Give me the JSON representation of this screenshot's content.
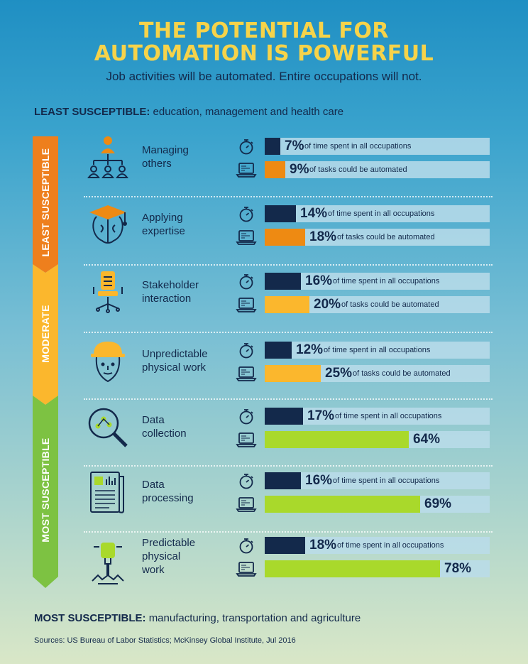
{
  "title": {
    "line1": "THE POTENTIAL FOR",
    "line2": "AUTOMATION IS POWERFUL"
  },
  "subtitle": "Job activities will be automated. Entire occupations will not.",
  "least_heading": {
    "bold": "LEAST SUSCEPTIBLE:",
    "rest": "education, management and health care"
  },
  "most_heading": {
    "bold": "MOST SUSCEPTIBLE:",
    "rest": "manufacturing, transportation and agriculture"
  },
  "sources": "Sources: US Bureau of Labor Statistics; McKinsey Global Institute, Jul 2016",
  "scale": {
    "labels": [
      "LEAST SUSCEPTIBLE",
      "MODERATE",
      "MOST SUSCEPTIBLE"
    ],
    "colors": [
      "#ee7f1d",
      "#fbb72d",
      "#7dc242"
    ]
  },
  "colors": {
    "time_bar": "#13294b",
    "tasks_bar_orange": "#ee8a12",
    "tasks_bar_yellow": "#fbb72d",
    "tasks_bar_green": "#a9d92b",
    "ink": "#13294b"
  },
  "time_caption": "of time spent in all occupations",
  "tasks_caption": "of tasks could be automated",
  "chart_data": {
    "type": "bar",
    "categories": [
      "Managing others",
      "Applying expertise",
      "Stakeholder interaction",
      "Unpredictable physical work",
      "Data collection",
      "Data processing",
      "Predictable physical work"
    ],
    "series": [
      {
        "name": "of time spent in all occupations",
        "values": [
          7,
          14,
          16,
          12,
          17,
          16,
          18
        ]
      },
      {
        "name": "of tasks could be automated",
        "values": [
          9,
          18,
          20,
          25,
          64,
          69,
          78
        ]
      }
    ],
    "ylim": [
      0,
      100
    ]
  },
  "rows": [
    {
      "label": "Managing\nothers",
      "icon": "manager-icon",
      "time": {
        "value": 7,
        "text": "7%"
      },
      "tasks": {
        "value": 9,
        "text": "9%",
        "color": "#ee8a12",
        "caption": true
      }
    },
    {
      "label": "Applying\nexpertise",
      "icon": "graduate-brain-icon",
      "time": {
        "value": 14,
        "text": "14%"
      },
      "tasks": {
        "value": 18,
        "text": "18%",
        "color": "#ee8a12",
        "caption": true
      }
    },
    {
      "label": "Stakeholder\ninteraction",
      "icon": "chair-icon",
      "time": {
        "value": 16,
        "text": "16%"
      },
      "tasks": {
        "value": 20,
        "text": "20%",
        "color": "#fbb72d",
        "caption": true
      }
    },
    {
      "label": "Unpredictable\nphysical work",
      "icon": "hardhat-worker-icon",
      "time": {
        "value": 12,
        "text": "12%"
      },
      "tasks": {
        "value": 25,
        "text": "25%",
        "color": "#fbb72d",
        "caption": true
      }
    },
    {
      "label": "Data\ncollection",
      "icon": "magnifier-data-icon",
      "time": {
        "value": 17,
        "text": "17%"
      },
      "tasks": {
        "value": 64,
        "text": "64%",
        "color": "#a9d92b",
        "caption": false
      }
    },
    {
      "label": "Data\nprocessing",
      "icon": "document-chart-icon",
      "time": {
        "value": 16,
        "text": "16%"
      },
      "tasks": {
        "value": 69,
        "text": "69%",
        "color": "#a9d92b",
        "caption": false
      }
    },
    {
      "label": "Predictable\nphysical\nwork",
      "icon": "jackhammer-icon",
      "time": {
        "value": 18,
        "text": "18%"
      },
      "tasks": {
        "value": 78,
        "text": "78%",
        "color": "#a9d92b",
        "caption": false
      }
    }
  ]
}
